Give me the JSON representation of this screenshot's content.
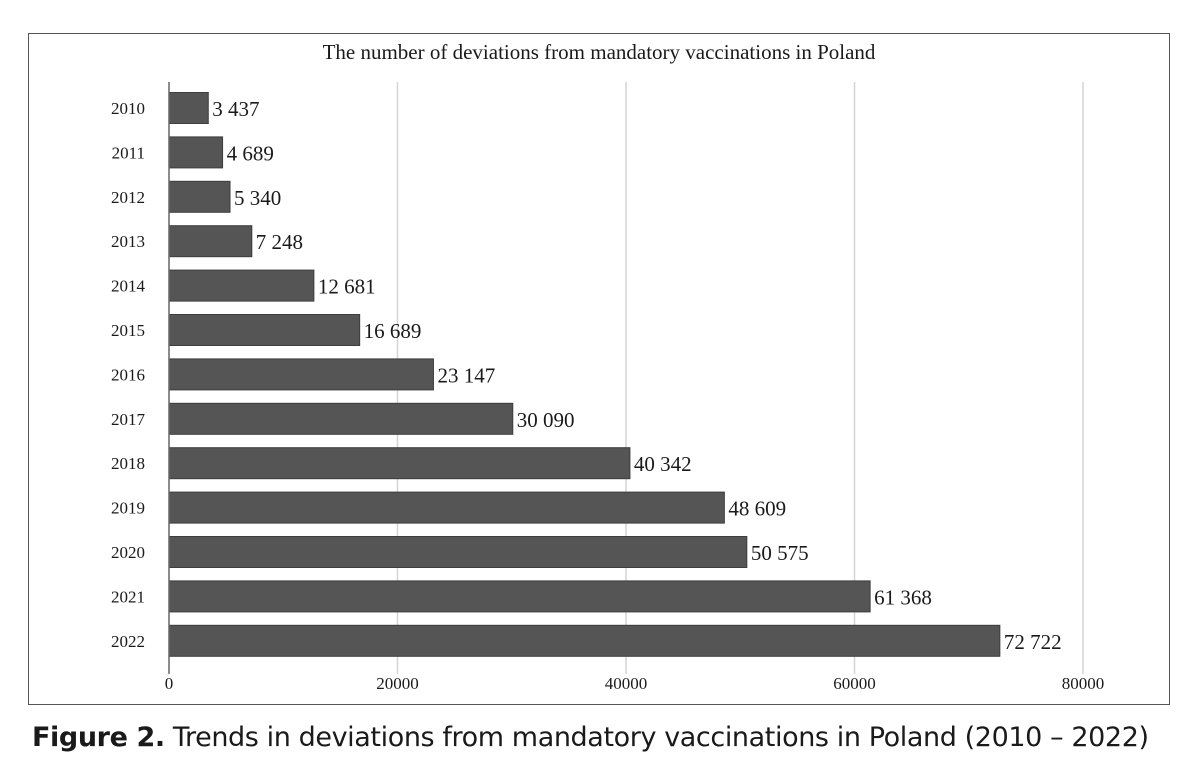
{
  "chart_data": {
    "type": "bar",
    "orientation": "horizontal",
    "title": "The number of deviations from mandatory vaccinations in Poland",
    "categories": [
      "2010",
      "2011",
      "2012",
      "2013",
      "2014",
      "2015",
      "2016",
      "2017",
      "2018",
      "2019",
      "2020",
      "2021",
      "2022"
    ],
    "values": [
      3437,
      4689,
      5340,
      7248,
      12681,
      16689,
      23147,
      30090,
      40342,
      48609,
      50575,
      61368,
      72722
    ],
    "data_labels": [
      "3 437",
      "4 689",
      "5 340",
      "7 248",
      "12 681",
      "16 689",
      "23 147",
      "30 090",
      "40 342",
      "48 609",
      "50 575",
      "61 368",
      "72 722"
    ],
    "x_ticks": [
      "0",
      "20000",
      "40000",
      "60000",
      "80000"
    ],
    "xlim": [
      0,
      80000
    ],
    "xlabel": "",
    "ylabel": "",
    "grid": "vertical",
    "legend": "none",
    "bar_color": "#555555",
    "gridline_color": "#d4d4d4"
  },
  "caption": {
    "label": "Figure 2.",
    "text": " Trends in deviations from mandatory vaccinations in Poland (2010 – 2022)"
  }
}
